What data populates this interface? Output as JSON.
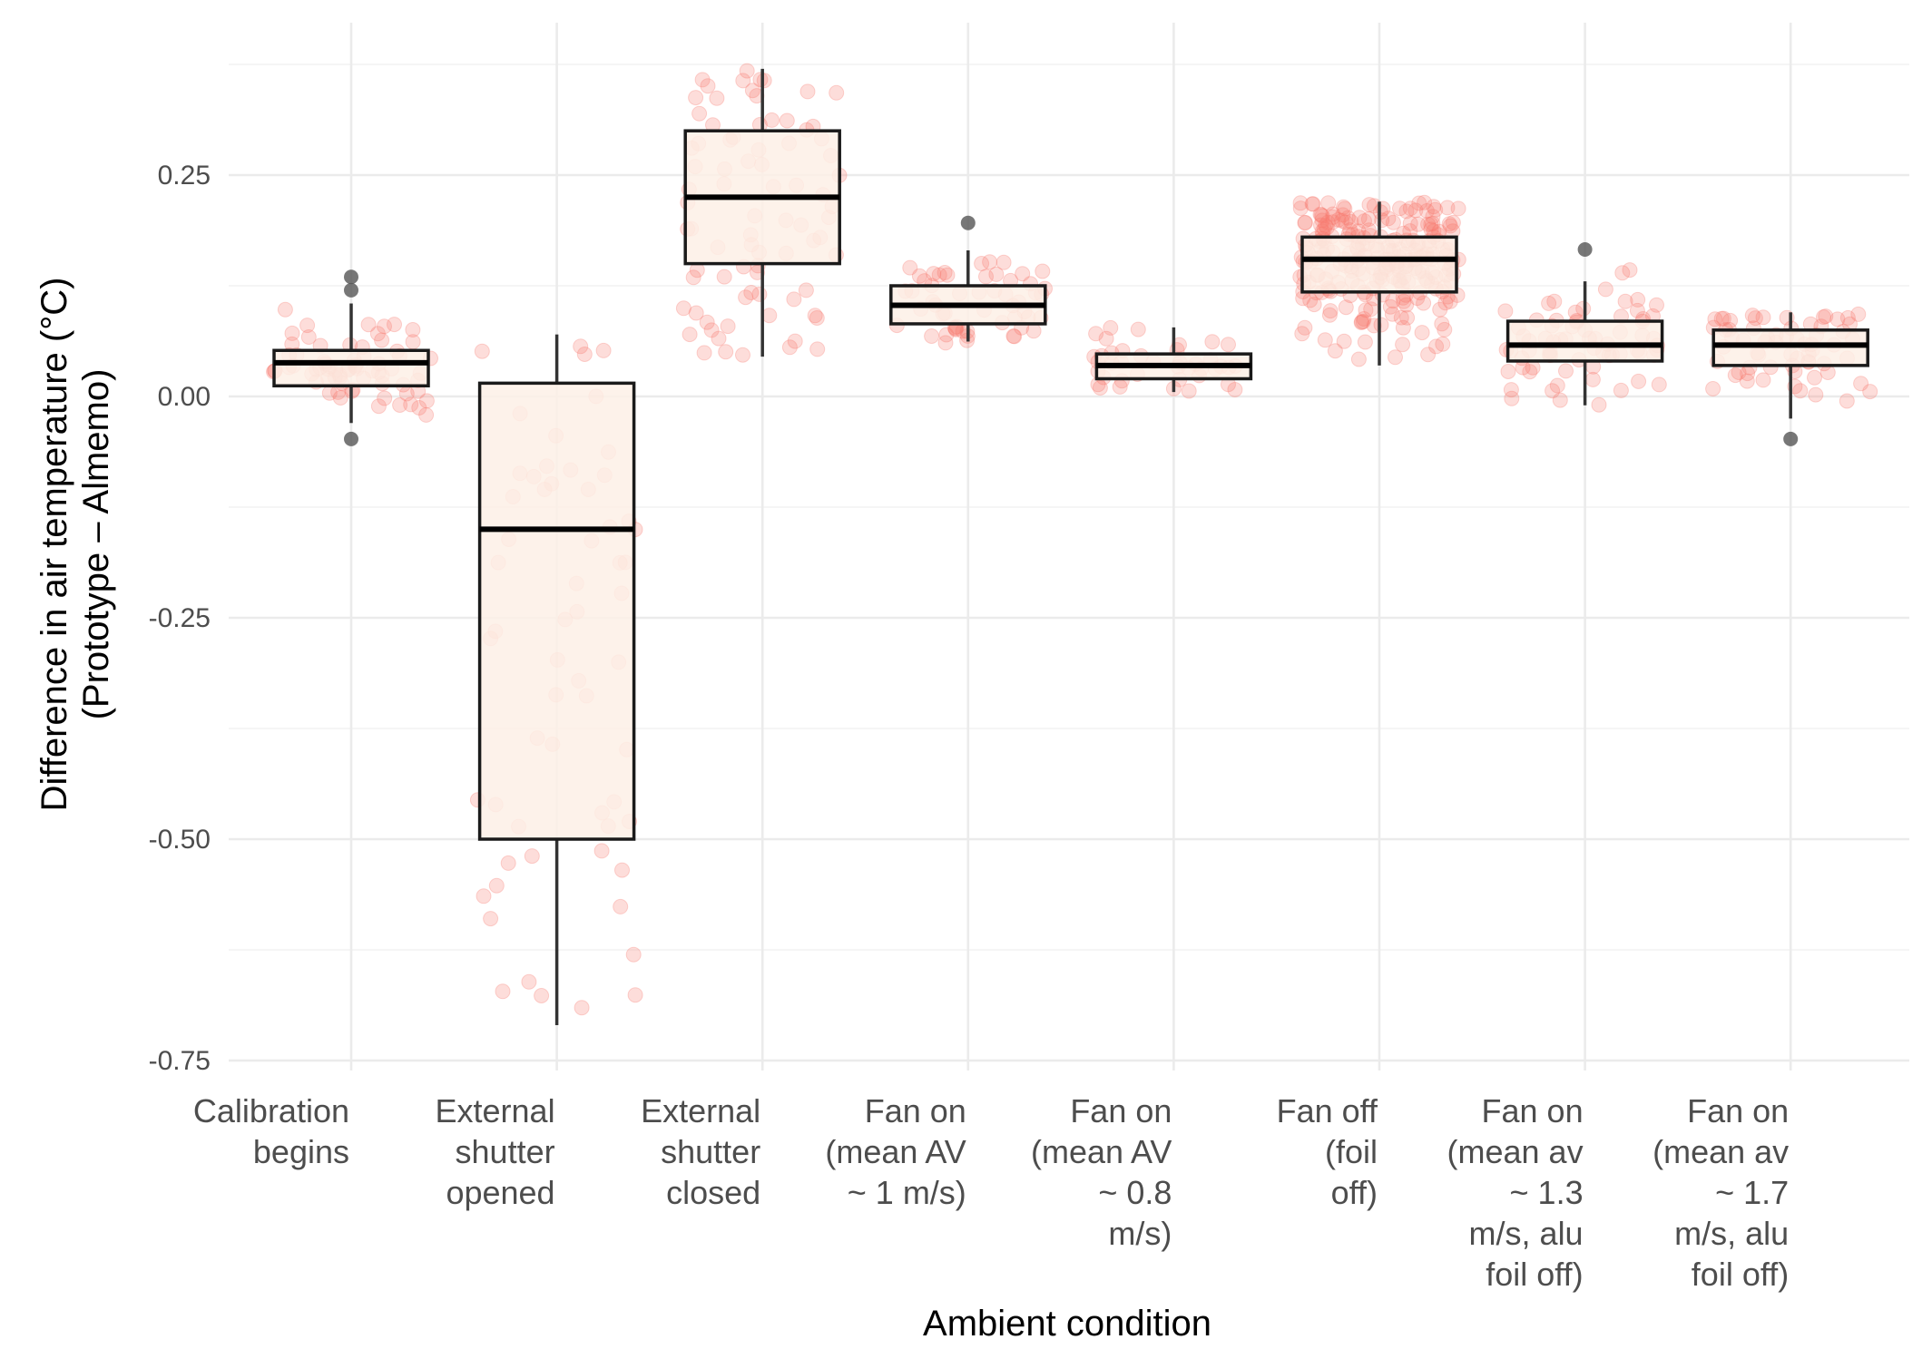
{
  "chart_data": {
    "type": "boxplot",
    "title": "",
    "xlabel": "Ambient condition",
    "ylabel": "Difference in air temperature (°C)",
    "ylabel_line2": "(Prototype – Almemo)",
    "ylim": [
      -0.75,
      0.38
    ],
    "yticks": [
      0.25,
      0.0,
      -0.25,
      -0.5,
      -0.75
    ],
    "ytick_labels": [
      "0.25",
      "0.00",
      "-0.25",
      "-0.50",
      "-0.75"
    ],
    "grid": true,
    "point_color": "#f8766d",
    "box_fill": "#fdf0e6",
    "categories": [
      [
        "Calibration",
        "begins"
      ],
      [
        "External",
        "shutter",
        "opened"
      ],
      [
        "External",
        "shutter",
        "closed"
      ],
      [
        "Fan on",
        "(mean AV",
        "~ 1 m/s)"
      ],
      [
        "Fan on",
        "(mean AV",
        "~ 0.8",
        "m/s)"
      ],
      [
        "Fan off",
        "(foil",
        "off)"
      ],
      [
        "Fan on",
        "(mean av",
        "~ 1.3",
        "m/s, alu",
        "foil off)"
      ],
      [
        "Fan on",
        "(mean av",
        "~ 1.7",
        "m/s, alu",
        "foil off)"
      ]
    ],
    "boxes": [
      {
        "whisker_low": -0.03,
        "q1": 0.012,
        "median": 0.038,
        "q3": 0.052,
        "whisker_high": 0.105,
        "outliers": [
          -0.048,
          0.12,
          0.135
        ],
        "n_points": 70,
        "jitter_min": -0.048,
        "jitter_max": 0.135
      },
      {
        "whisker_low": -0.71,
        "q1": -0.5,
        "median": -0.15,
        "q3": 0.015,
        "whisker_high": 0.07,
        "outliers": [],
        "n_points": 60,
        "jitter_min": -0.71,
        "jitter_max": 0.07
      },
      {
        "whisker_low": 0.045,
        "q1": 0.15,
        "median": 0.225,
        "q3": 0.3,
        "whisker_high": 0.37,
        "outliers": [],
        "n_points": 80,
        "jitter_min": 0.045,
        "jitter_max": 0.37
      },
      {
        "whisker_low": 0.062,
        "q1": 0.082,
        "median": 0.103,
        "q3": 0.125,
        "whisker_high": 0.165,
        "outliers": [
          0.196
        ],
        "n_points": 55,
        "jitter_min": 0.06,
        "jitter_max": 0.196
      },
      {
        "whisker_low": 0.005,
        "q1": 0.02,
        "median": 0.035,
        "q3": 0.048,
        "whisker_high": 0.078,
        "outliers": [],
        "n_points": 40,
        "jitter_min": 0.005,
        "jitter_max": 0.078
      },
      {
        "whisker_low": 0.035,
        "q1": 0.118,
        "median": 0.155,
        "q3": 0.18,
        "whisker_high": 0.22,
        "outliers": [],
        "n_points": 260,
        "jitter_min": 0.035,
        "jitter_max": 0.22
      },
      {
        "whisker_low": -0.01,
        "q1": 0.04,
        "median": 0.058,
        "q3": 0.085,
        "whisker_high": 0.13,
        "outliers": [
          0.166
        ],
        "n_points": 70,
        "jitter_min": -0.01,
        "jitter_max": 0.166
      },
      {
        "whisker_low": -0.025,
        "q1": 0.035,
        "median": 0.058,
        "q3": 0.075,
        "whisker_high": 0.095,
        "outliers": [
          -0.048
        ],
        "n_points": 65,
        "jitter_min": -0.048,
        "jitter_max": 0.095
      }
    ]
  }
}
